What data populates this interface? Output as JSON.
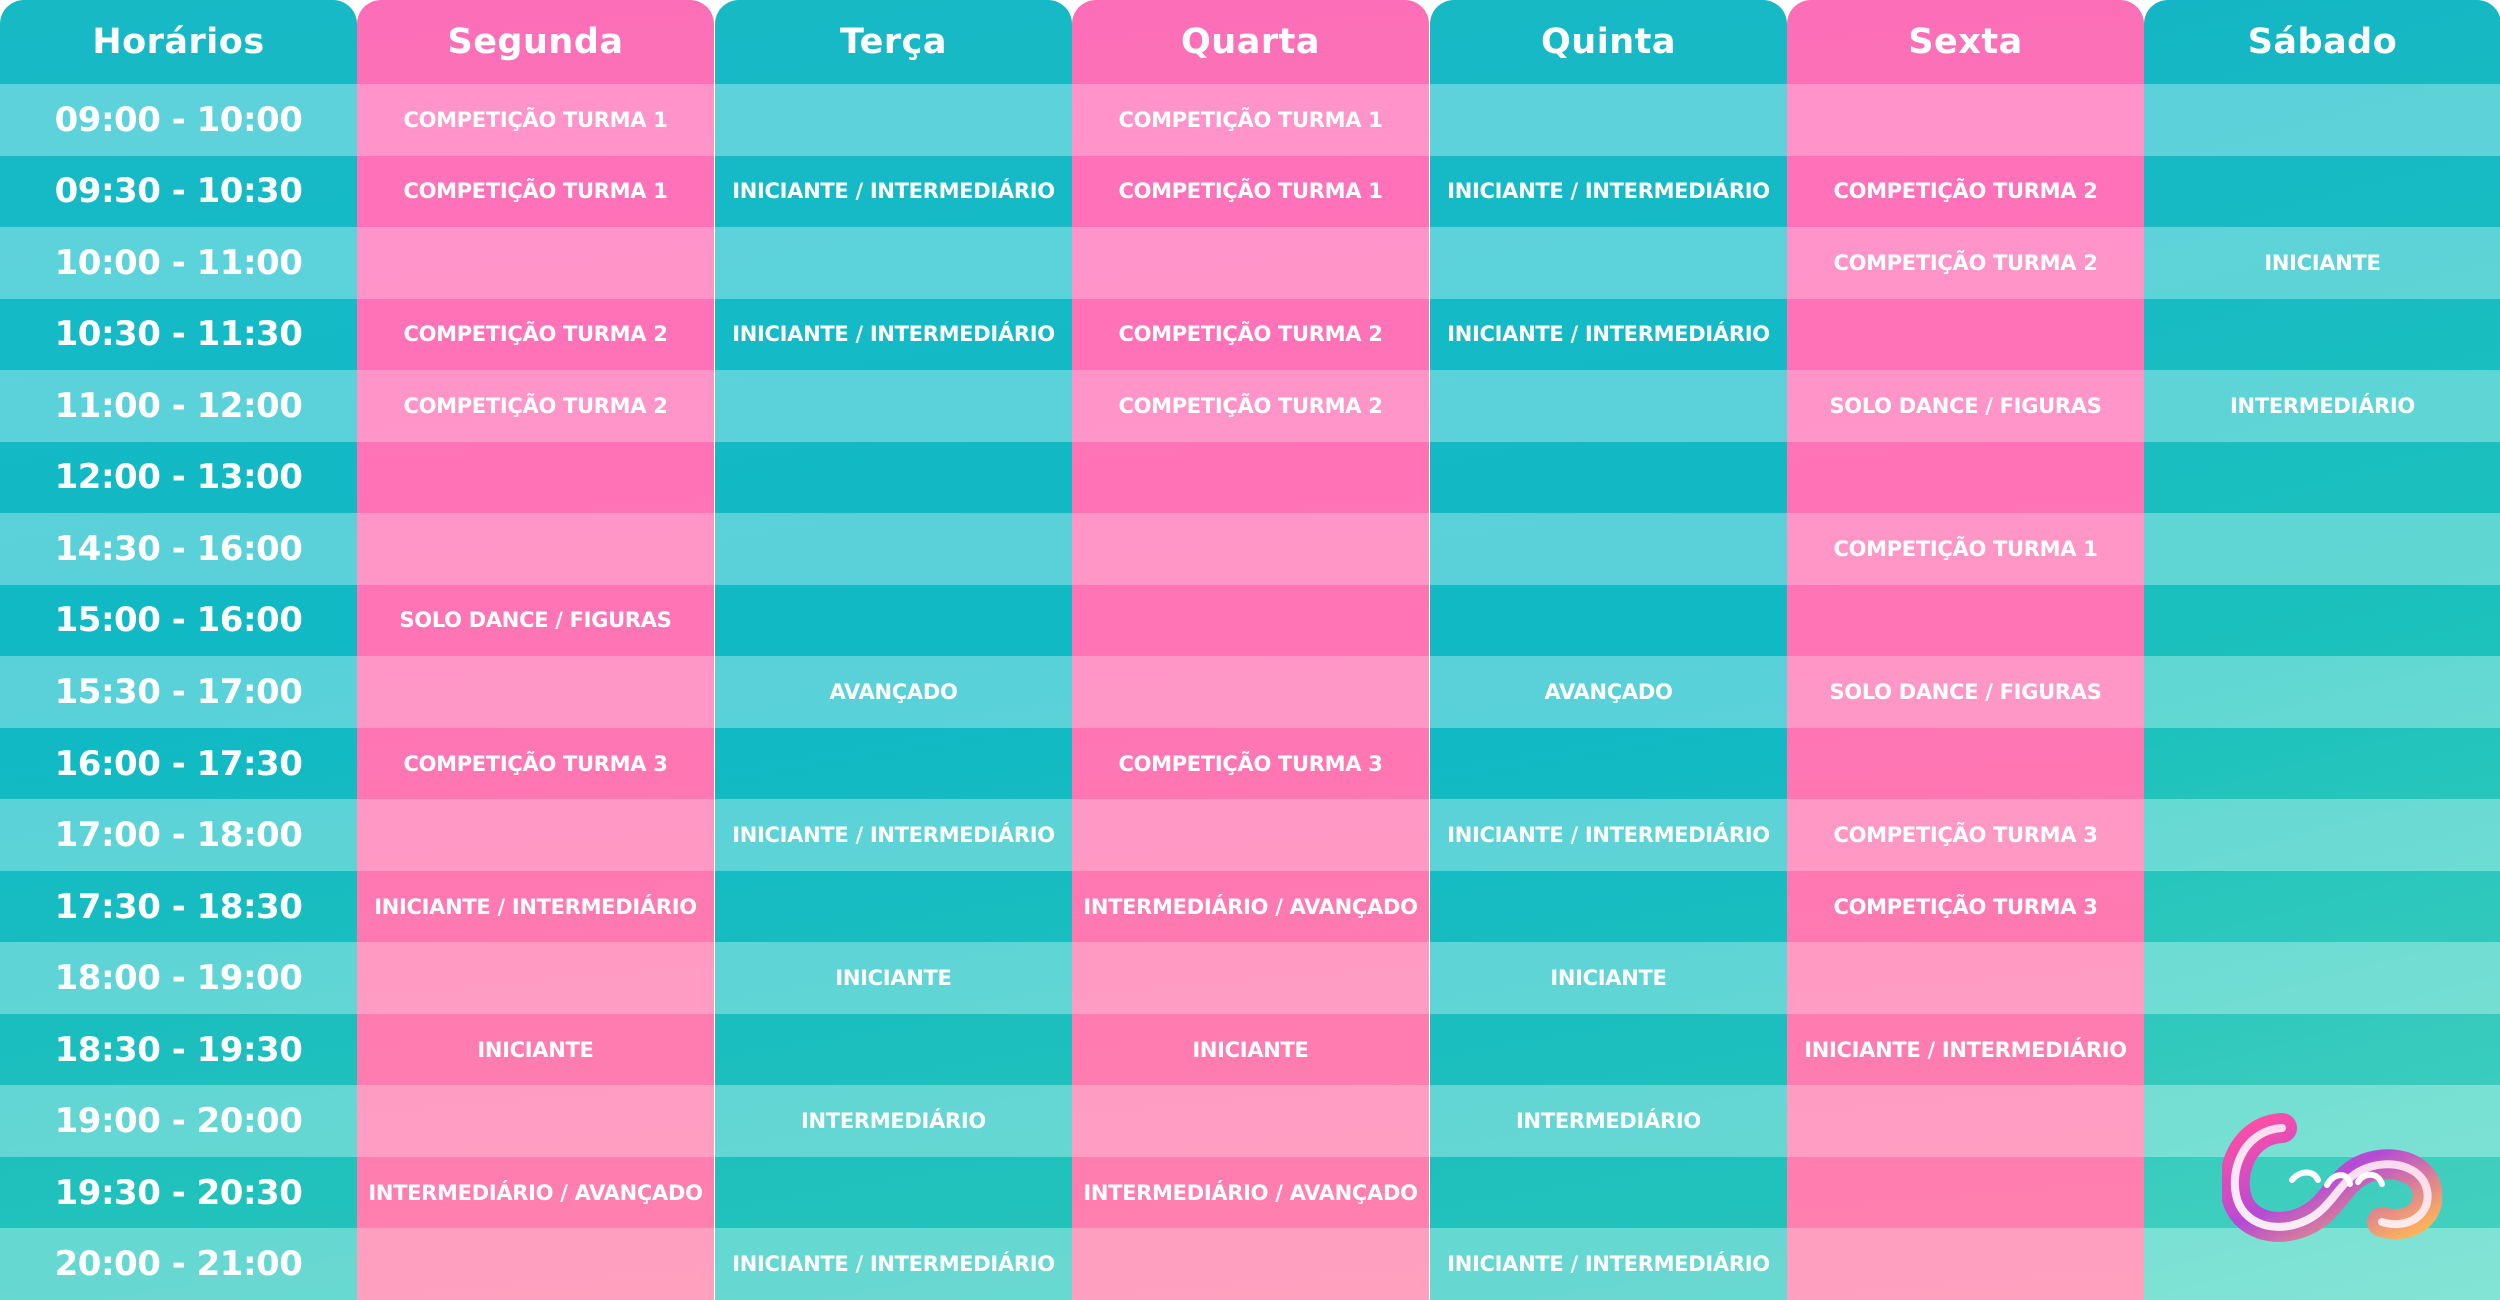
{
  "schedule": {
    "columns": [
      {
        "key": "horarios",
        "header": "Horários",
        "color": "teal"
      },
      {
        "key": "segunda",
        "header": "Segunda",
        "color": "pink"
      },
      {
        "key": "terca",
        "header": "Terça",
        "color": "teal"
      },
      {
        "key": "quarta",
        "header": "Quarta",
        "color": "pink"
      },
      {
        "key": "quinta",
        "header": "Quinta",
        "color": "teal"
      },
      {
        "key": "sexta",
        "header": "Sexta",
        "color": "pink"
      },
      {
        "key": "sabado",
        "header": "Sábado",
        "color": "teal"
      }
    ],
    "rows": [
      {
        "time": "09:00 - 10:00",
        "segunda": "COMPETIÇÃO TURMA 1",
        "terca": "",
        "quarta": "COMPETIÇÃO TURMA 1",
        "quinta": "",
        "sexta": "",
        "sabado": ""
      },
      {
        "time": "09:30 - 10:30",
        "segunda": "COMPETIÇÃO TURMA 1",
        "terca": "INICIANTE / INTERMEDIÁRIO",
        "quarta": "COMPETIÇÃO TURMA 1",
        "quinta": "INICIANTE / INTERMEDIÁRIO",
        "sexta": "COMPETIÇÃO TURMA 2",
        "sabado": ""
      },
      {
        "time": "10:00 - 11:00",
        "segunda": "",
        "terca": "",
        "quarta": "",
        "quinta": "",
        "sexta": "COMPETIÇÃO TURMA 2",
        "sabado": "INICIANTE"
      },
      {
        "time": "10:30 - 11:30",
        "segunda": "COMPETIÇÃO TURMA 2",
        "terca": "INICIANTE / INTERMEDIÁRIO",
        "quarta": "COMPETIÇÃO TURMA 2",
        "quinta": "INICIANTE / INTERMEDIÁRIO",
        "sexta": "",
        "sabado": ""
      },
      {
        "time": "11:00 - 12:00",
        "segunda": "COMPETIÇÃO TURMA 2",
        "terca": "",
        "quarta": "COMPETIÇÃO TURMA 2",
        "quinta": "",
        "sexta": "SOLO DANCE / FIGURAS",
        "sabado": "INTERMEDIÁRIO"
      },
      {
        "time": "12:00 - 13:00",
        "segunda": "",
        "terca": "",
        "quarta": "",
        "quinta": "",
        "sexta": "",
        "sabado": ""
      },
      {
        "time": "14:30 - 16:00",
        "segunda": "",
        "terca": "",
        "quarta": "",
        "quinta": "",
        "sexta": "COMPETIÇÃO TURMA 1",
        "sabado": ""
      },
      {
        "time": "15:00 - 16:00",
        "segunda": "SOLO DANCE / FIGURAS",
        "terca": "",
        "quarta": "",
        "quinta": "",
        "sexta": "",
        "sabado": ""
      },
      {
        "time": "15:30 - 17:00",
        "segunda": "",
        "terca": "AVANÇADO",
        "quarta": "",
        "quinta": "AVANÇADO",
        "sexta": "SOLO DANCE / FIGURAS",
        "sabado": ""
      },
      {
        "time": "16:00 - 17:30",
        "segunda": "COMPETIÇÃO TURMA 3",
        "terca": "",
        "quarta": "COMPETIÇÃO TURMA 3",
        "quinta": "",
        "sexta": "",
        "sabado": ""
      },
      {
        "time": "17:00 - 18:00",
        "segunda": "",
        "terca": "INICIANTE / INTERMEDIÁRIO",
        "quarta": "",
        "quinta": "INICIANTE / INTERMEDIÁRIO",
        "sexta": "COMPETIÇÃO TURMA 3",
        "sabado": ""
      },
      {
        "time": "17:30 - 18:30",
        "segunda": "INICIANTE / INTERMEDIÁRIO",
        "terca": "",
        "quarta": "INTERMEDIÁRIO / AVANÇADO",
        "quinta": "",
        "sexta": "COMPETIÇÃO TURMA 3",
        "sabado": ""
      },
      {
        "time": "18:00 - 19:00",
        "segunda": "",
        "terca": "INICIANTE",
        "quarta": "",
        "quinta": "INICIANTE",
        "sexta": "",
        "sabado": ""
      },
      {
        "time": "18:30 - 19:30",
        "segunda": "INICIANTE",
        "terca": "",
        "quarta": "INICIANTE",
        "quinta": "",
        "sexta": "INICIANTE / INTERMEDIÁRIO",
        "sabado": ""
      },
      {
        "time": "19:00 - 20:00",
        "segunda": "",
        "terca": "INTERMEDIÁRIO",
        "quarta": "",
        "quinta": "INTERMEDIÁRIO",
        "sexta": "",
        "sabado": ""
      },
      {
        "time": "19:30 - 20:30",
        "segunda": "INTERMEDIÁRIO / AVANÇADO",
        "terca": "",
        "quarta": "INTERMEDIÁRIO / AVANÇADO",
        "quinta": "",
        "sexta": "",
        "sabado": ""
      },
      {
        "time": "20:00 - 21:00",
        "segunda": "",
        "terca": "INICIANTE / INTERMEDIÁRIO",
        "quarta": "",
        "quinta": "INICIANTE / INTERMEDIÁRIO",
        "sexta": "",
        "sabado": ""
      }
    ]
  },
  "logo": {
    "brand": "Cezar",
    "colors": [
      "#ff4fa3",
      "#b44bd6",
      "#ffb25a"
    ]
  }
}
